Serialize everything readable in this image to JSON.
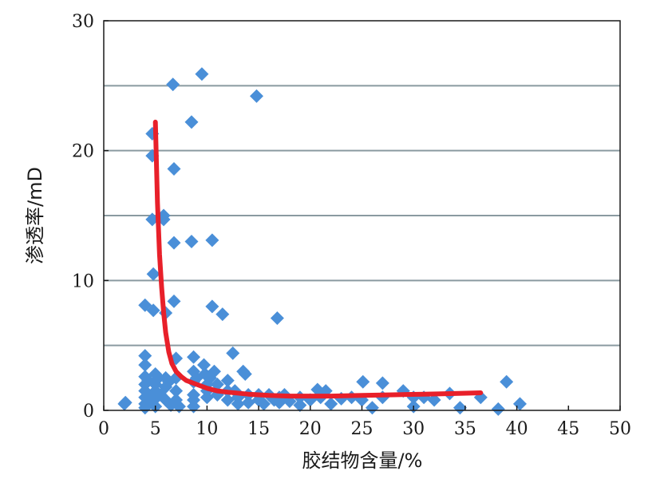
{
  "chart_data": {
    "type": "scatter",
    "title": "",
    "xlabel": "胶结物含量/%",
    "ylabel": "渗透率/mD",
    "xlim": [
      0,
      50
    ],
    "ylim": [
      0,
      30
    ],
    "x_ticks": [
      "0",
      "5",
      "10",
      "15",
      "20",
      "25",
      "30",
      "35",
      "40",
      "45",
      "50"
    ],
    "y_ticks": [
      "0",
      "10",
      "20",
      "30"
    ],
    "gridlines_y": [
      5,
      10,
      15,
      20,
      25
    ],
    "grid": "horizontal",
    "legend": "none",
    "colors": {
      "points": "#4a8fd8",
      "trend": "#e8202a",
      "grid": "#8a9aa0",
      "axis": "#1a1a1a"
    },
    "series": [
      {
        "kind": "scatter",
        "points": [
          [
            2,
            0.5
          ],
          [
            2.1,
            0.6
          ],
          [
            4,
            8.1
          ],
          [
            4,
            4.2
          ],
          [
            4,
            3.5
          ],
          [
            4,
            2.6
          ],
          [
            4,
            2.0
          ],
          [
            4,
            1.5
          ],
          [
            4,
            1.0
          ],
          [
            4,
            0.5
          ],
          [
            4,
            0.2
          ],
          [
            4.3,
            2.3
          ],
          [
            4.3,
            1.2
          ],
          [
            4.5,
            0.8
          ],
          [
            4.7,
            21.3
          ],
          [
            4.7,
            19.6
          ],
          [
            4.7,
            14.7
          ],
          [
            4.8,
            10.5
          ],
          [
            4.8,
            7.7
          ],
          [
            5,
            2.8
          ],
          [
            5,
            2.0
          ],
          [
            5,
            1.5
          ],
          [
            5,
            0.9
          ],
          [
            5,
            0.3
          ],
          [
            5.3,
            2.5
          ],
          [
            5.5,
            1.2
          ],
          [
            5.8,
            15.0
          ],
          [
            5.8,
            14.7
          ],
          [
            6,
            7.5
          ],
          [
            6,
            2.5
          ],
          [
            6,
            1.8
          ],
          [
            6,
            0.8
          ],
          [
            6.3,
            2.2
          ],
          [
            6.5,
            0.4
          ],
          [
            6.7,
            25.1
          ],
          [
            6.8,
            18.6
          ],
          [
            6.8,
            12.9
          ],
          [
            6.8,
            8.4
          ],
          [
            7,
            4.0
          ],
          [
            7,
            2.5
          ],
          [
            7,
            1.5
          ],
          [
            7,
            0.8
          ],
          [
            7.3,
            0.3
          ],
          [
            8.5,
            22.2
          ],
          [
            8.5,
            13.0
          ],
          [
            8.7,
            4.1
          ],
          [
            8.7,
            3.0
          ],
          [
            8.7,
            2.2
          ],
          [
            8.7,
            1.2
          ],
          [
            8.7,
            0.8
          ],
          [
            8.7,
            0.3
          ],
          [
            9,
            2.5
          ],
          [
            9.5,
            25.9
          ],
          [
            9.7,
            3.5
          ],
          [
            9.8,
            2.8
          ],
          [
            10,
            2.0
          ],
          [
            10,
            1.5
          ],
          [
            10,
            1.0
          ],
          [
            10.3,
            2.5
          ],
          [
            10.5,
            13.1
          ],
          [
            10.5,
            8.0
          ],
          [
            10.7,
            3.0
          ],
          [
            11,
            2.0
          ],
          [
            11,
            1.2
          ],
          [
            11.5,
            7.4
          ],
          [
            12,
            2.3
          ],
          [
            12,
            1.5
          ],
          [
            12,
            0.8
          ],
          [
            12.5,
            4.4
          ],
          [
            12.7,
            1.5
          ],
          [
            13,
            1.0
          ],
          [
            13,
            0.5
          ],
          [
            13.5,
            3.0
          ],
          [
            13.7,
            2.8
          ],
          [
            14,
            1.2
          ],
          [
            14,
            0.6
          ],
          [
            14.8,
            24.2
          ],
          [
            15,
            1.2
          ],
          [
            15,
            0.8
          ],
          [
            15.5,
            0.5
          ],
          [
            16,
            1.2
          ],
          [
            16.5,
            0.8
          ],
          [
            16.8,
            7.1
          ],
          [
            17,
            1.0
          ],
          [
            17,
            0.6
          ],
          [
            17.5,
            1.2
          ],
          [
            18,
            0.7
          ],
          [
            19,
            1.0
          ],
          [
            19,
            0.4
          ],
          [
            20,
            0.8
          ],
          [
            20.7,
            1.6
          ],
          [
            21,
            1.0
          ],
          [
            21.5,
            1.5
          ],
          [
            22,
            0.5
          ],
          [
            23,
            0.9
          ],
          [
            24,
            1.0
          ],
          [
            25.1,
            2.2
          ],
          [
            25,
            0.8
          ],
          [
            26,
            0.2
          ],
          [
            27,
            2.1
          ],
          [
            27,
            1.0
          ],
          [
            29,
            1.5
          ],
          [
            30,
            1.0
          ],
          [
            30,
            0.3
          ],
          [
            31,
            1.0
          ],
          [
            32,
            0.8
          ],
          [
            33.5,
            1.3
          ],
          [
            34.5,
            0.2
          ],
          [
            36.5,
            1.0
          ],
          [
            38.2,
            0.1
          ],
          [
            39,
            2.2
          ],
          [
            40.3,
            0.5
          ]
        ]
      },
      {
        "kind": "trend",
        "points": [
          [
            5.0,
            22.2
          ],
          [
            5.2,
            16.0
          ],
          [
            5.4,
            12.0
          ],
          [
            5.6,
            9.5
          ],
          [
            5.8,
            7.5
          ],
          [
            6.0,
            6.0
          ],
          [
            6.3,
            4.5
          ],
          [
            6.6,
            3.6
          ],
          [
            7.0,
            3.0
          ],
          [
            7.5,
            2.6
          ],
          [
            8.0,
            2.3
          ],
          [
            9.0,
            2.0
          ],
          [
            10.0,
            1.7
          ],
          [
            11.0,
            1.5
          ],
          [
            12.0,
            1.4
          ],
          [
            14.0,
            1.25
          ],
          [
            16.0,
            1.15
          ],
          [
            18.0,
            1.1
          ],
          [
            20.0,
            1.1
          ],
          [
            22.0,
            1.1
          ],
          [
            25.0,
            1.15
          ],
          [
            28.0,
            1.2
          ],
          [
            31.0,
            1.25
          ],
          [
            34.0,
            1.3
          ],
          [
            36.5,
            1.35
          ]
        ]
      }
    ]
  }
}
